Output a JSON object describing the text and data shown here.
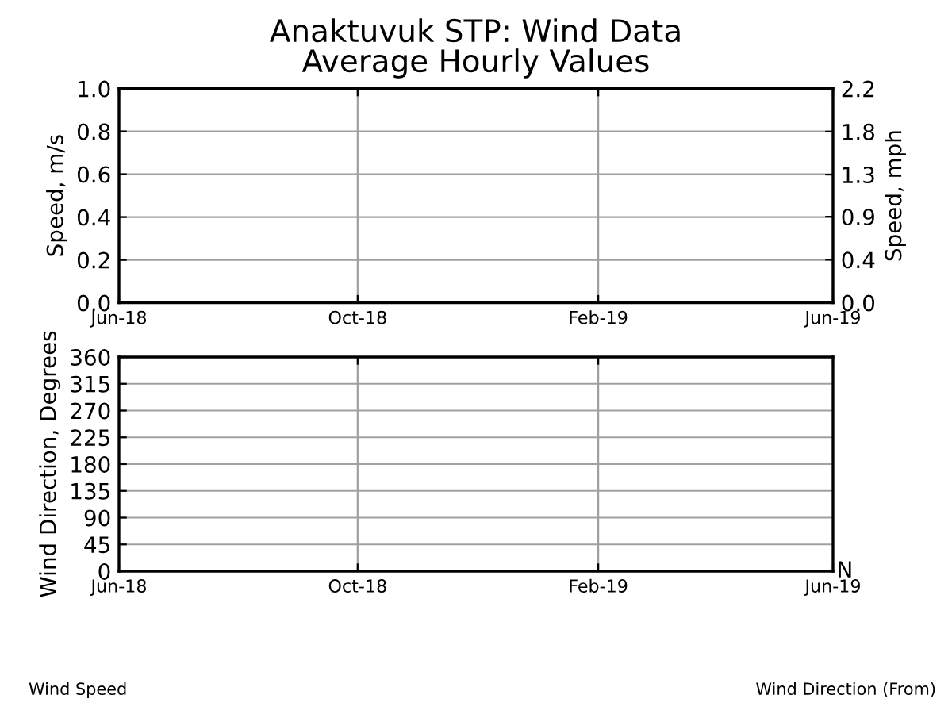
{
  "chart_data": [
    {
      "type": "line",
      "title": "Anaktuvuk STP: Wind Data",
      "subtitle": "Average Hourly Values",
      "ylabel": "Speed, m/s",
      "y2label": "Speed, mph",
      "xlim": [
        "2018-06-01",
        "2019-06-01"
      ],
      "xticks": [
        {
          "value": "2018-06-01",
          "label": "Jun-18"
        },
        {
          "value": "2018-10-01",
          "label": "Oct-18"
        },
        {
          "value": "2019-02-01",
          "label": "Feb-19"
        },
        {
          "value": "2019-06-01",
          "label": "Jun-19"
        }
      ],
      "ylim": [
        0,
        1
      ],
      "yticks": [
        {
          "value": 0,
          "label": "0.0"
        },
        {
          "value": 0.2,
          "label": "0.2"
        },
        {
          "value": 0.4,
          "label": "0.4"
        },
        {
          "value": 0.6,
          "label": "0.6"
        },
        {
          "value": 0.8,
          "label": "0.8"
        },
        {
          "value": 1,
          "label": "1.0"
        }
      ],
      "y2lim": [
        0,
        2.24
      ],
      "y2ticks": [
        {
          "value": 0,
          "label": "0.0"
        },
        {
          "value": 0.45,
          "label": "0.4"
        },
        {
          "value": 0.9,
          "label": "0.9"
        },
        {
          "value": 1.34,
          "label": "1.3"
        },
        {
          "value": 1.79,
          "label": "1.8"
        },
        {
          "value": 2.24,
          "label": "2.2"
        }
      ],
      "grid": true,
      "annotations": [
        "Wind Speed"
      ]
    },
    {
      "type": "line",
      "ylabel": "Wind Direction, Degrees",
      "xlim": [
        "2018-06-01",
        "2019-06-01"
      ],
      "xticks": [
        {
          "value": "2018-06-01",
          "label": "Jun-18"
        },
        {
          "value": "2018-10-01",
          "label": "Oct-18"
        },
        {
          "value": "2019-02-01",
          "label": "Feb-19"
        },
        {
          "value": "2019-06-01",
          "label": "Jun-19"
        }
      ],
      "ylim": [
        0,
        360
      ],
      "yticks": [
        0,
        45,
        90,
        135,
        180,
        225,
        270,
        315,
        360
      ],
      "grid": true,
      "annotations": [
        "N",
        "Wind Direction (From)"
      ]
    }
  ]
}
